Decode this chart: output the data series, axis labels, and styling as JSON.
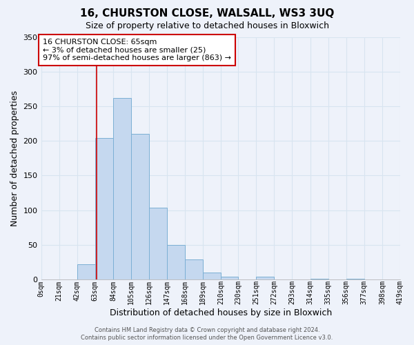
{
  "title": "16, CHURSTON CLOSE, WALSALL, WS3 3UQ",
  "subtitle": "Size of property relative to detached houses in Bloxwich",
  "xlabel": "Distribution of detached houses by size in Bloxwich",
  "ylabel": "Number of detached properties",
  "bin_edges": [
    0,
    21,
    42,
    63,
    84,
    105,
    126,
    147,
    168,
    189,
    210,
    230,
    251,
    272,
    293,
    314,
    335,
    356,
    377,
    398,
    419
  ],
  "bar_heights": [
    0,
    0,
    22,
    204,
    262,
    210,
    104,
    50,
    29,
    10,
    4,
    0,
    4,
    0,
    0,
    1,
    0,
    1,
    0,
    0
  ],
  "bar_color": "#c5d8ef",
  "bar_edge_color": "#7bafd4",
  "ylim": [
    0,
    350
  ],
  "yticks": [
    0,
    50,
    100,
    150,
    200,
    250,
    300,
    350
  ],
  "property_size": 65,
  "annotation_line1": "16 CHURSTON CLOSE: 65sqm",
  "annotation_line2": "← 3% of detached houses are smaller (25)",
  "annotation_line3": "97% of semi-detached houses are larger (863) →",
  "annotation_box_color": "#ffffff",
  "annotation_box_edge_color": "#cc0000",
  "footer_text": "Contains HM Land Registry data © Crown copyright and database right 2024.\nContains public sector information licensed under the Open Government Licence v3.0.",
  "tick_labels": [
    "0sqm",
    "21sqm",
    "42sqm",
    "63sqm",
    "84sqm",
    "105sqm",
    "126sqm",
    "147sqm",
    "168sqm",
    "189sqm",
    "210sqm",
    "230sqm",
    "251sqm",
    "272sqm",
    "293sqm",
    "314sqm",
    "335sqm",
    "356sqm",
    "377sqm",
    "398sqm",
    "419sqm"
  ],
  "background_color": "#eef2fa",
  "grid_color": "#d8e4f0",
  "plot_bg_color": "#eef2fa"
}
